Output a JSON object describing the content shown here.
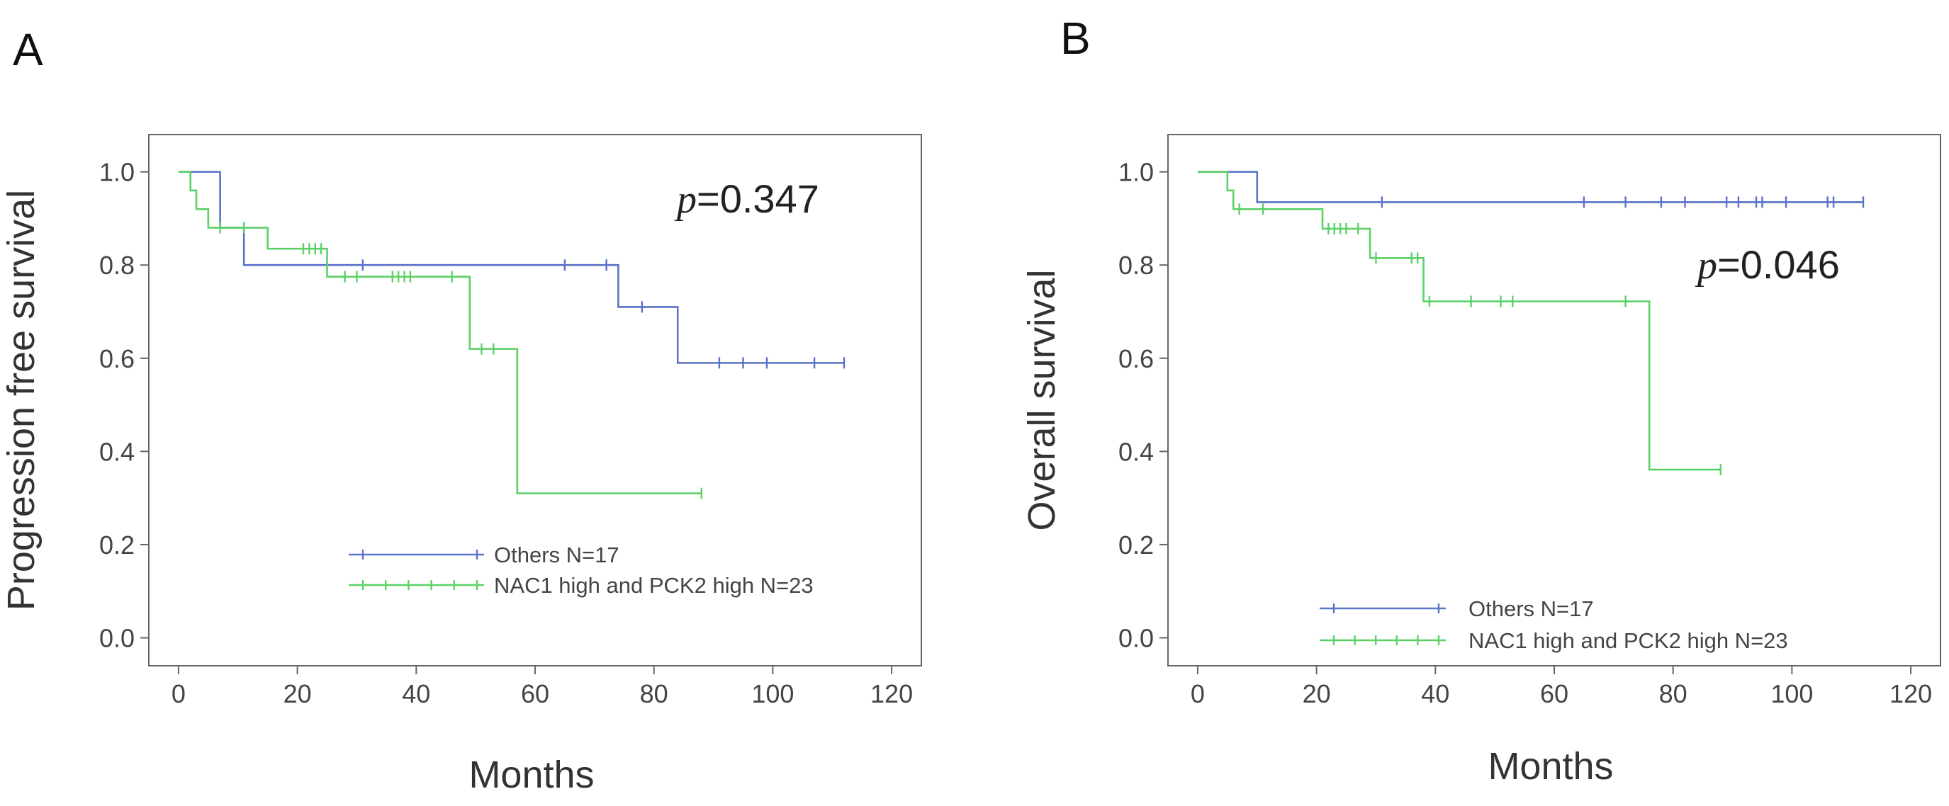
{
  "colors": {
    "others": "#5a72c8",
    "nac1_pck2": "#5cd168"
  },
  "chart_data": [
    {
      "panel": "A",
      "type": "line",
      "subtype": "kaplan-meier",
      "xlabel": "Months",
      "ylabel": "Progression free survival",
      "xlim": [
        -5,
        125
      ],
      "ylim": [
        -0.06,
        1.08
      ],
      "xticks": [
        0,
        20,
        40,
        60,
        80,
        100,
        120
      ],
      "yticks": [
        0.0,
        0.2,
        0.4,
        0.6,
        0.8,
        1.0
      ],
      "ytick_labels": [
        "0.0",
        "0.2",
        "0.4",
        "0.6",
        "0.8",
        "1.0"
      ],
      "annotation": {
        "p_label": "p",
        "p_text": "=0.347"
      },
      "legend_position": "bottom-center",
      "series": [
        {
          "name": "Others N=17",
          "color_key": "others",
          "steps": [
            [
              0,
              1.0
            ],
            [
              7,
              0.88
            ],
            [
              11,
              0.8
            ],
            [
              74,
              0.71
            ],
            [
              84,
              0.59
            ],
            [
              112,
              0.59
            ]
          ],
          "censored": [
            [
              31,
              0.8
            ],
            [
              65,
              0.8
            ],
            [
              72,
              0.8
            ],
            [
              78,
              0.71
            ],
            [
              91,
              0.59
            ],
            [
              95,
              0.59
            ],
            [
              99,
              0.59
            ],
            [
              107,
              0.59
            ],
            [
              112,
              0.59
            ]
          ]
        },
        {
          "name": "NAC1 high and PCK2 high N=23",
          "color_key": "nac1_pck2",
          "steps": [
            [
              0,
              1.0
            ],
            [
              2,
              0.96
            ],
            [
              3,
              0.92
            ],
            [
              5,
              0.88
            ],
            [
              15,
              0.835
            ],
            [
              25,
              0.775
            ],
            [
              49,
              0.62
            ],
            [
              57,
              0.31
            ],
            [
              88,
              0.31
            ]
          ],
          "censored": [
            [
              7,
              0.88
            ],
            [
              11,
              0.88
            ],
            [
              21,
              0.835
            ],
            [
              22,
              0.835
            ],
            [
              23,
              0.835
            ],
            [
              24,
              0.835
            ],
            [
              28,
              0.775
            ],
            [
              30,
              0.775
            ],
            [
              36,
              0.775
            ],
            [
              37,
              0.775
            ],
            [
              38,
              0.775
            ],
            [
              39,
              0.775
            ],
            [
              46,
              0.775
            ],
            [
              51,
              0.62
            ],
            [
              53,
              0.62
            ],
            [
              88,
              0.31
            ]
          ]
        }
      ]
    },
    {
      "panel": "B",
      "type": "line",
      "subtype": "kaplan-meier",
      "xlabel": "Months",
      "ylabel": "Overall survival",
      "xlim": [
        -5,
        125
      ],
      "ylim": [
        -0.06,
        1.08
      ],
      "xticks": [
        0,
        20,
        40,
        60,
        80,
        100,
        120
      ],
      "yticks": [
        0.0,
        0.2,
        0.4,
        0.6,
        0.8,
        1.0
      ],
      "ytick_labels": [
        "0.0",
        "0.2",
        "0.4",
        "0.6",
        "0.8",
        "1.0"
      ],
      "annotation": {
        "p_label": "p",
        "p_text": "=0.046"
      },
      "legend_position": "bottom-center",
      "series": [
        {
          "name": "Others N=17",
          "color_key": "others",
          "steps": [
            [
              0,
              1.0
            ],
            [
              10,
              0.935
            ],
            [
              112,
              0.935
            ]
          ],
          "censored": [
            [
              31,
              0.935
            ],
            [
              65,
              0.935
            ],
            [
              72,
              0.935
            ],
            [
              78,
              0.935
            ],
            [
              82,
              0.935
            ],
            [
              89,
              0.935
            ],
            [
              91,
              0.935
            ],
            [
              94,
              0.935
            ],
            [
              95,
              0.935
            ],
            [
              99,
              0.935
            ],
            [
              106,
              0.935
            ],
            [
              107,
              0.935
            ],
            [
              112,
              0.935
            ]
          ]
        },
        {
          "name": "NAC1 high and PCK2 high N=23",
          "color_key": "nac1_pck2",
          "steps": [
            [
              0,
              1.0
            ],
            [
              5,
              0.96
            ],
            [
              6,
              0.92
            ],
            [
              21,
              0.878
            ],
            [
              29,
              0.815
            ],
            [
              38,
              0.722
            ],
            [
              76,
              0.361
            ],
            [
              88,
              0.361
            ]
          ],
          "censored": [
            [
              7,
              0.92
            ],
            [
              11,
              0.92
            ],
            [
              22,
              0.878
            ],
            [
              23,
              0.878
            ],
            [
              24,
              0.878
            ],
            [
              25,
              0.878
            ],
            [
              27,
              0.878
            ],
            [
              30,
              0.815
            ],
            [
              36,
              0.815
            ],
            [
              37,
              0.815
            ],
            [
              39,
              0.722
            ],
            [
              46,
              0.722
            ],
            [
              51,
              0.722
            ],
            [
              53,
              0.722
            ],
            [
              72,
              0.722
            ],
            [
              88,
              0.361
            ]
          ]
        }
      ]
    }
  ]
}
